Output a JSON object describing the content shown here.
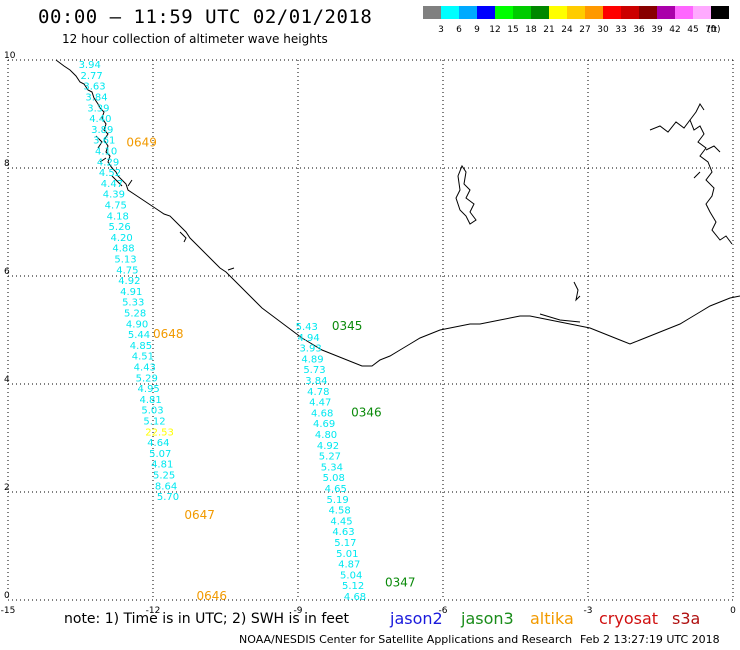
{
  "header": {
    "title": "00:00 – 11:59 UTC 02/01/2018",
    "subtitle": "12 hour collection of altimeter wave heights"
  },
  "colorbar": {
    "unit": "(ft)",
    "bins": [
      {
        "label": "3",
        "color": "#808080"
      },
      {
        "label": "6",
        "color": "#00ffff"
      },
      {
        "label": "9",
        "color": "#00aaff"
      },
      {
        "label": "12",
        "color": "#0000ff"
      },
      {
        "label": "15",
        "color": "#00ff00"
      },
      {
        "label": "18",
        "color": "#00cc00"
      },
      {
        "label": "21",
        "color": "#008800"
      },
      {
        "label": "24",
        "color": "#ffff00"
      },
      {
        "label": "27",
        "color": "#ffcc00"
      },
      {
        "label": "30",
        "color": "#ff9900"
      },
      {
        "label": "33",
        "color": "#ff0000"
      },
      {
        "label": "36",
        "color": "#cc0000"
      },
      {
        "label": "39",
        "color": "#880000"
      },
      {
        "label": "42",
        "color": "#aa00aa"
      },
      {
        "label": "45",
        "color": "#ff66ff"
      },
      {
        "label": "70",
        "color": "#ffaaff"
      },
      {
        "label": "",
        "color": "#000000"
      }
    ]
  },
  "axes": {
    "x_ticks": [
      -15,
      -12,
      -9,
      -6,
      -3,
      0
    ],
    "y_ticks": [
      0,
      2,
      4,
      6,
      8,
      10
    ],
    "x_range": [
      -15,
      0
    ],
    "y_range": [
      0,
      10
    ]
  },
  "tracks": [
    {
      "satellite": "altika",
      "points": [
        {
          "lon": -13.54,
          "lat": 9.85,
          "swh": "3.94"
        },
        {
          "lon": -13.5,
          "lat": 9.65,
          "swh": "2.77"
        },
        {
          "lon": -13.44,
          "lat": 9.45,
          "swh": "3.63"
        },
        {
          "lon": -13.4,
          "lat": 9.25,
          "swh": "3.84"
        },
        {
          "lon": -13.36,
          "lat": 9.05,
          "swh": "3.39"
        },
        {
          "lon": -13.32,
          "lat": 8.85,
          "swh": "4.40"
        },
        {
          "lon": -13.28,
          "lat": 8.65,
          "swh": "3.89"
        },
        {
          "lon": -13.24,
          "lat": 8.45,
          "swh": "3.61"
        },
        {
          "lon": -13.2,
          "lat": 8.25,
          "swh": "4.10"
        },
        {
          "lon": -13.16,
          "lat": 8.05,
          "swh": "4.29"
        },
        {
          "lon": -13.12,
          "lat": 7.85,
          "swh": "4.52"
        },
        {
          "lon": -13.08,
          "lat": 7.65,
          "swh": "4.47"
        },
        {
          "lon": -13.04,
          "lat": 7.45,
          "swh": "4.39"
        },
        {
          "lon": -13.0,
          "lat": 7.25,
          "swh": "4.75"
        },
        {
          "lon": -12.96,
          "lat": 7.05,
          "swh": "4.18"
        },
        {
          "lon": -12.92,
          "lat": 6.85,
          "swh": "5.26"
        },
        {
          "lon": -12.88,
          "lat": 6.65,
          "swh": "4.20"
        },
        {
          "lon": -12.84,
          "lat": 6.45,
          "swh": "4.88"
        },
        {
          "lon": -12.8,
          "lat": 6.25,
          "swh": "5.13"
        },
        {
          "lon": -12.76,
          "lat": 6.05,
          "swh": "4.75"
        },
        {
          "lon": -12.72,
          "lat": 5.85,
          "swh": "4.92"
        },
        {
          "lon": -12.68,
          "lat": 5.65,
          "swh": "4.91"
        },
        {
          "lon": -12.64,
          "lat": 5.45,
          "swh": "5.33"
        },
        {
          "lon": -12.6,
          "lat": 5.25,
          "swh": "5.28"
        },
        {
          "lon": -12.56,
          "lat": 5.05,
          "swh": "4.90"
        },
        {
          "lon": -12.52,
          "lat": 4.85,
          "swh": "5.44"
        },
        {
          "lon": -12.48,
          "lat": 4.65,
          "swh": "4.85"
        },
        {
          "lon": -12.44,
          "lat": 4.45,
          "swh": "4.51"
        },
        {
          "lon": -12.4,
          "lat": 4.25,
          "swh": "4.43"
        },
        {
          "lon": -12.36,
          "lat": 4.05,
          "swh": "5.29"
        },
        {
          "lon": -12.32,
          "lat": 3.85,
          "swh": "4.95"
        },
        {
          "lon": -12.28,
          "lat": 3.65,
          "swh": "4.81"
        },
        {
          "lon": -12.24,
          "lat": 3.45,
          "swh": "5.03"
        },
        {
          "lon": -12.2,
          "lat": 3.25,
          "swh": "5.12"
        },
        {
          "lon": -12.16,
          "lat": 3.05,
          "swh": "22.53",
          "color": "#ffff00"
        },
        {
          "lon": -12.12,
          "lat": 2.85,
          "swh": "4.64"
        },
        {
          "lon": -12.08,
          "lat": 2.65,
          "swh": "5.07"
        },
        {
          "lon": -12.04,
          "lat": 2.45,
          "swh": "4.81"
        },
        {
          "lon": -12.0,
          "lat": 2.25,
          "swh": "5.25"
        },
        {
          "lon": -11.96,
          "lat": 2.05,
          "swh": "8.64"
        },
        {
          "lon": -11.92,
          "lat": 1.85,
          "swh": "5.70"
        }
      ],
      "time_labels": [
        {
          "lon": -12.55,
          "lat": 8.4,
          "label": "0649"
        },
        {
          "lon": -12.0,
          "lat": 4.85,
          "label": "0648"
        },
        {
          "lon": -11.35,
          "lat": 1.5,
          "label": "0647"
        },
        {
          "lon": -11.1,
          "lat": 0.0,
          "label": "0646"
        }
      ]
    },
    {
      "satellite": "jason3",
      "points": [
        {
          "lon": -9.05,
          "lat": 5.0,
          "swh": "5.43"
        },
        {
          "lon": -9.01,
          "lat": 4.8,
          "swh": "4.94"
        },
        {
          "lon": -8.97,
          "lat": 4.6,
          "swh": "3.93"
        },
        {
          "lon": -8.93,
          "lat": 4.4,
          "swh": "4.89"
        },
        {
          "lon": -8.89,
          "lat": 4.2,
          "swh": "5.73"
        },
        {
          "lon": -8.85,
          "lat": 4.0,
          "swh": "3.84"
        },
        {
          "lon": -8.81,
          "lat": 3.8,
          "swh": "4.78"
        },
        {
          "lon": -8.77,
          "lat": 3.6,
          "swh": "4.47"
        },
        {
          "lon": -8.73,
          "lat": 3.4,
          "swh": "4.68"
        },
        {
          "lon": -8.69,
          "lat": 3.2,
          "swh": "4.69"
        },
        {
          "lon": -8.65,
          "lat": 3.0,
          "swh": "4.80"
        },
        {
          "lon": -8.61,
          "lat": 2.8,
          "swh": "4.92"
        },
        {
          "lon": -8.57,
          "lat": 2.6,
          "swh": "5.27"
        },
        {
          "lon": -8.53,
          "lat": 2.4,
          "swh": "5.34"
        },
        {
          "lon": -8.49,
          "lat": 2.2,
          "swh": "5.08"
        },
        {
          "lon": -8.45,
          "lat": 2.0,
          "swh": "4.65"
        },
        {
          "lon": -8.41,
          "lat": 1.8,
          "swh": "5.19"
        },
        {
          "lon": -8.37,
          "lat": 1.6,
          "swh": "4.58"
        },
        {
          "lon": -8.33,
          "lat": 1.4,
          "swh": "4.45"
        },
        {
          "lon": -8.29,
          "lat": 1.2,
          "swh": "4.63"
        },
        {
          "lon": -8.25,
          "lat": 1.0,
          "swh": "5.17"
        },
        {
          "lon": -8.21,
          "lat": 0.8,
          "swh": "5.01"
        },
        {
          "lon": -8.17,
          "lat": 0.6,
          "swh": "4.87"
        },
        {
          "lon": -8.13,
          "lat": 0.4,
          "swh": "5.04"
        },
        {
          "lon": -8.09,
          "lat": 0.2,
          "swh": "5.12"
        },
        {
          "lon": -8.05,
          "lat": 0.0,
          "swh": "4.68"
        }
      ],
      "time_labels": [
        {
          "lon": -8.3,
          "lat": 5.0,
          "label": "0345"
        },
        {
          "lon": -7.9,
          "lat": 3.4,
          "label": "0346"
        },
        {
          "lon": -7.2,
          "lat": 0.25,
          "label": "0347"
        }
      ]
    }
  ],
  "footer": {
    "note": "note: 1) Time is in UTC; 2) SWH is in feet",
    "legend": {
      "jason2": "jason2",
      "jason3": "jason3",
      "altika": "altika",
      "cryosat": "cryosat",
      "s3a": "s3a"
    },
    "credit": "NOAA/NESDIS Center for Satellite Applications and Research",
    "timestamp": "Feb  2 13:27:19 UTC 2018"
  },
  "colors": {
    "altika_time": "#f29a00",
    "jason3_time": "#0a8a0a",
    "swh_default": "#00e8f0",
    "coast": "#000000",
    "grid": "#000000"
  }
}
